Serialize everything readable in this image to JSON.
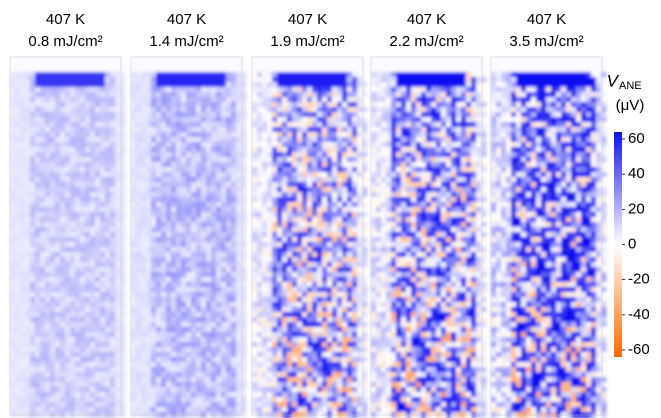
{
  "chart_data": {
    "type": "heatmap-panels",
    "panels": [
      {
        "temperature": "407 K",
        "fluence": "0.8 mJ/cm²"
      },
      {
        "temperature": "407 K",
        "fluence": "1.4 mJ/cm²"
      },
      {
        "temperature": "407 K",
        "fluence": "1.9 mJ/cm²"
      },
      {
        "temperature": "407 K",
        "fluence": "2.2 mJ/cm²"
      },
      {
        "temperature": "407 K",
        "fluence": "3.5 mJ/cm²"
      }
    ],
    "colorbar": {
      "symbol": "V",
      "subscript": "ANE",
      "unit": "(μV)",
      "clim": [
        -64,
        64
      ],
      "ticks": [
        60,
        40,
        20,
        0,
        -20,
        -40,
        -60
      ],
      "colors": [
        "#ff6a00",
        "#ffffff",
        "#1010f0"
      ]
    }
  }
}
